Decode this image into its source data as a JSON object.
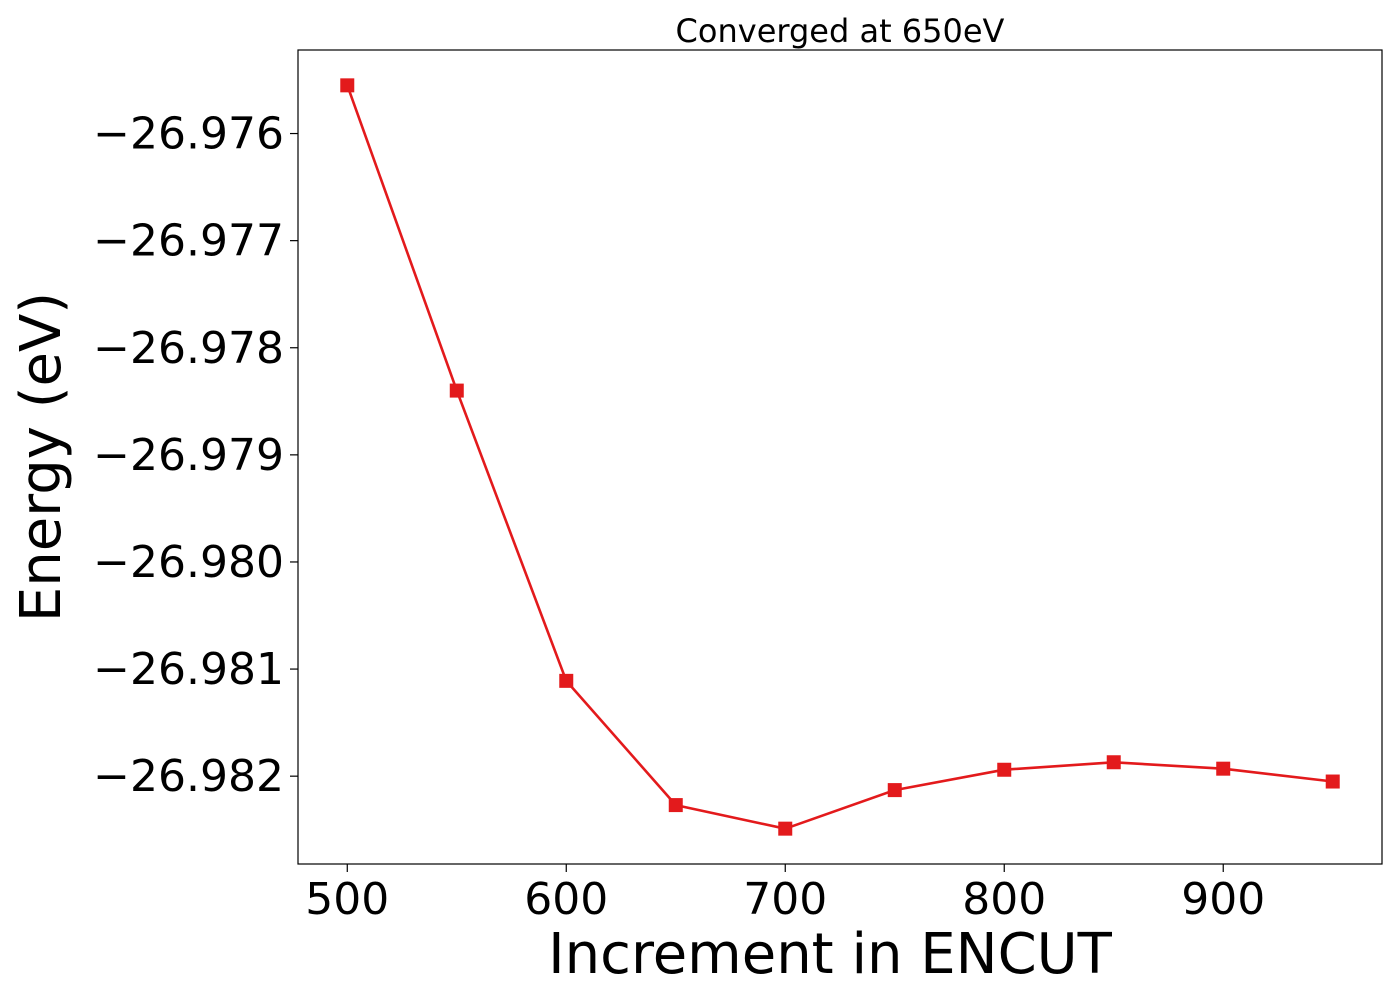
{
  "chart_data": {
    "type": "line",
    "title": "Converged at 650eV",
    "xlabel": "Increment in ENCUT",
    "ylabel": "Energy (eV)",
    "x": [
      500,
      550,
      600,
      650,
      700,
      750,
      800,
      850,
      900,
      950
    ],
    "series": [
      {
        "values": [
          -26.97555,
          -26.9784,
          -26.98111,
          -26.98227,
          -26.98249,
          -26.98213,
          -26.98194,
          -26.98187,
          -26.98193,
          -26.98205
        ]
      }
    ],
    "xticks": [
      500,
      600,
      700,
      800,
      900
    ],
    "xtick_labels": [
      "500",
      "600",
      "700",
      "800",
      "900"
    ],
    "yticks": [
      -26.976,
      -26.977,
      -26.978,
      -26.979,
      -26.98,
      -26.981,
      -26.982
    ],
    "ytick_labels": [
      "−26.976",
      "−26.977",
      "−26.978",
      "−26.979",
      "−26.980",
      "−26.981",
      "−26.982"
    ],
    "xlim": [
      477.5,
      972.5
    ],
    "ylim": [
      -26.98282,
      -26.97522
    ],
    "grid": false,
    "line_color": "#e31a1c",
    "marker": "square"
  }
}
